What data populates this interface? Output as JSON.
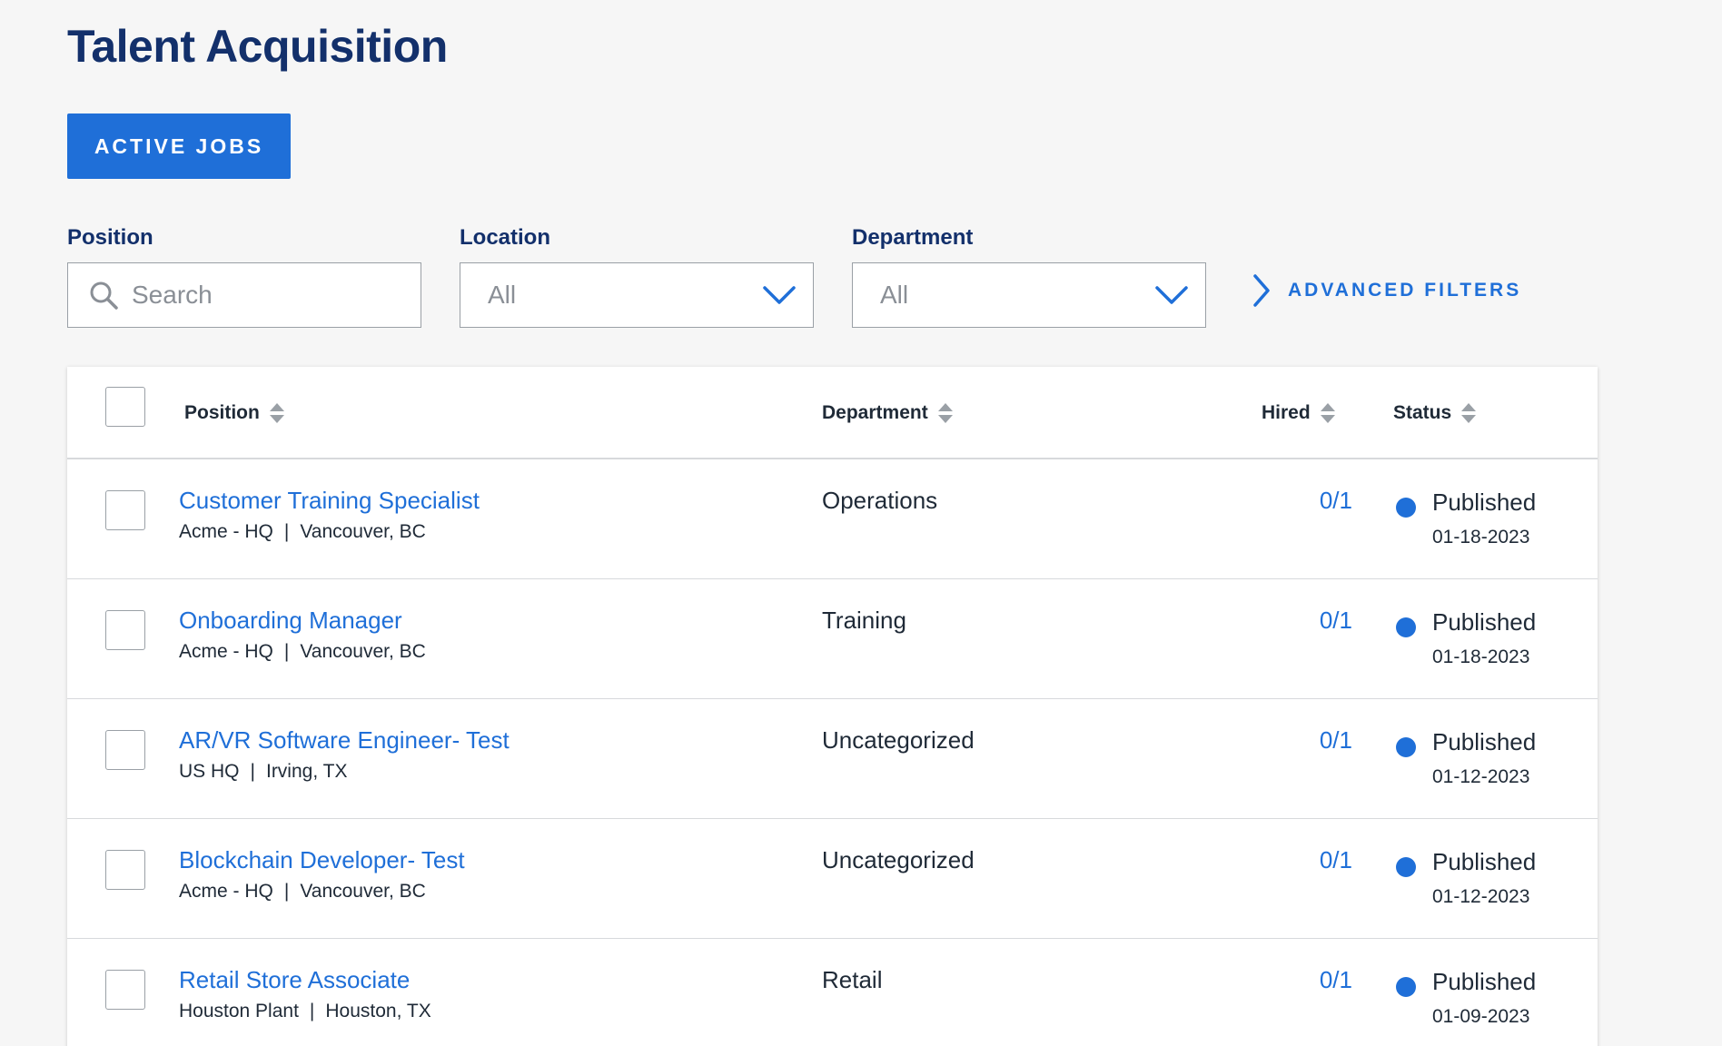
{
  "header": {
    "title": "Talent Acquisition"
  },
  "tabs": {
    "active_jobs_label": "ACTIVE JOBS"
  },
  "filters": {
    "position_label": "Position",
    "search_placeholder": "Search",
    "location_label": "Location",
    "location_value": "All",
    "department_label": "Department",
    "department_value": "All",
    "advanced_label": "ADVANCED FILTERS"
  },
  "table": {
    "columns": {
      "position": "Position",
      "department": "Department",
      "hired": "Hired",
      "status": "Status"
    },
    "rows": [
      {
        "title": "Customer Training Specialist",
        "site": "Acme - HQ",
        "city": "Vancouver, BC",
        "department": "Operations",
        "hired": "0/1",
        "status": "Published",
        "date": "01-18-2023"
      },
      {
        "title": "Onboarding Manager",
        "site": "Acme - HQ",
        "city": "Vancouver, BC",
        "department": "Training",
        "hired": "0/1",
        "status": "Published",
        "date": "01-18-2023"
      },
      {
        "title": "AR/VR Software Engineer- Test",
        "site": "US HQ",
        "city": "Irving, TX",
        "department": "Uncategorized",
        "hired": "0/1",
        "status": "Published",
        "date": "01-12-2023"
      },
      {
        "title": "Blockchain Developer- Test",
        "site": "Acme - HQ",
        "city": "Vancouver, BC",
        "department": "Uncategorized",
        "hired": "0/1",
        "status": "Published",
        "date": "01-12-2023"
      },
      {
        "title": "Retail Store Associate",
        "site": "Houston Plant",
        "city": "Houston, TX",
        "department": "Retail",
        "hired": "0/1",
        "status": "Published",
        "date": "01-09-2023"
      }
    ],
    "separator": "|"
  },
  "colors": {
    "brand_navy": "#13306b",
    "accent_blue": "#1f6fd8",
    "published_dot": "#1f6fd8"
  }
}
